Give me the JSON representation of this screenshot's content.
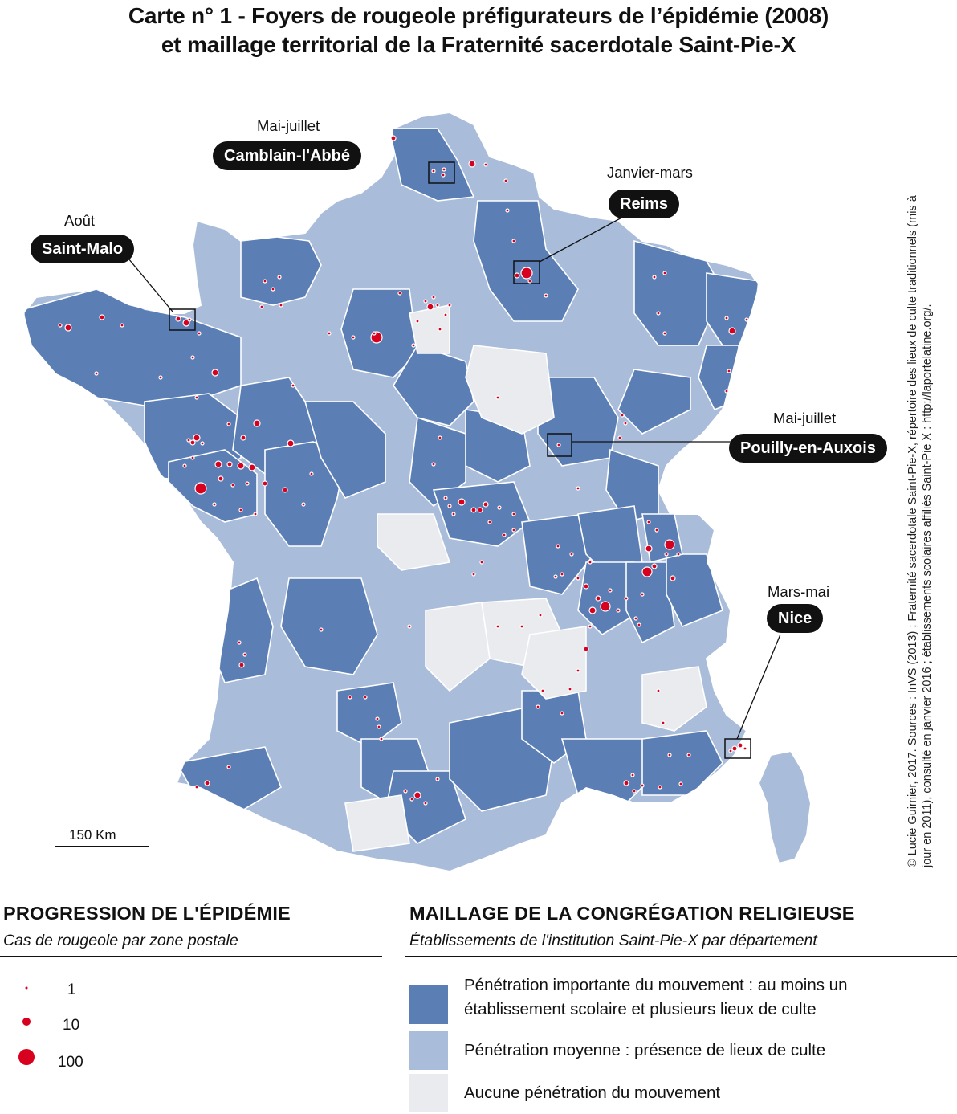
{
  "title": {
    "line1": "Carte n° 1 - Foyers de rougeole préfigurateurs de l’épidémie (2008)",
    "line2": "et maillage territorial de la Fraternité sacerdotale Saint-Pie-X"
  },
  "credit": {
    "line1": "© Lucie Guimier, 2017. Sources : InVS (2013) ; Fraternité sacerdotale Saint-Pie-X, répertoire des lieux de culte traditionnels (mis à",
    "line2": "jour en 2011), consulté en janvier 2016 ; établissements scolaires affiliés Saint-Pie X : http://laportelatine.org/."
  },
  "callouts": {
    "camblain": {
      "period": "Mai-juillet",
      "place": "Camblain-l'Abbé"
    },
    "reims": {
      "period": "Janvier-mars",
      "place": "Reims"
    },
    "saintmalo": {
      "period": "Août",
      "place": "Saint-Malo"
    },
    "pouilly": {
      "period": "Mai-juillet",
      "place": "Pouilly-en-Auxois"
    },
    "nice": {
      "period": "Mars-mai",
      "place": "Nice"
    }
  },
  "scale": {
    "label": "150 Km"
  },
  "legend_epidemic": {
    "heading": "PROGRESSION DE L'ÉPIDÉMIE",
    "subheading": "Cas de rougeole par zone postale",
    "sizes": [
      {
        "label": "1",
        "value": 1
      },
      {
        "label": "10",
        "value": 10
      },
      {
        "label": "100",
        "value": 100
      }
    ],
    "dot_color": "#d7001e"
  },
  "legend_congregation": {
    "heading": "MAILLAGE DE LA CONGRÉGATION RELIGIEUSE",
    "subheading": "Établissements de l'institution Saint-Pie-X par département",
    "classes": [
      {
        "label_line1": "Pénétration importante du mouvement : au moins un",
        "label_line2": "établissement scolaire et plusieurs lieux de culte",
        "color": "#5b7fb5"
      },
      {
        "label_line1": "Pénétration moyenne : présence de lieux de culte",
        "label_line2": "",
        "color": "#a9bcda"
      },
      {
        "label_line1": "Aucune pénétration du mouvement",
        "label_line2": "",
        "color": "#e9ebef"
      }
    ]
  }
}
